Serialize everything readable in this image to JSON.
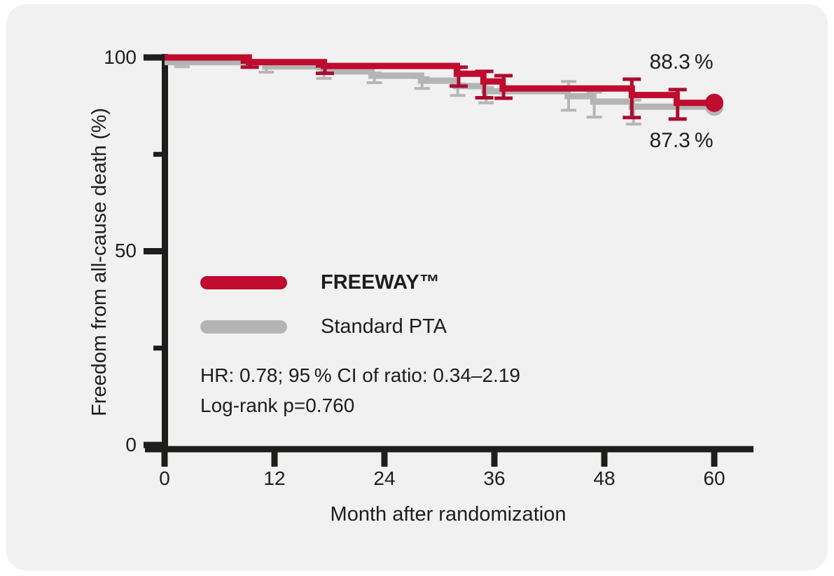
{
  "page": {
    "colors": {
      "page_bg": "#ffffff",
      "card_bg": "#f2f1f1",
      "axis": "#1d1d1b",
      "text": "#1d1d1b"
    }
  },
  "chart_data": {
    "type": "line",
    "subtype": "kaplan-meier-step",
    "title": "",
    "xlabel": "Month after randomization",
    "ylabel": "Freedom from all-cause death (%)",
    "xlim": [
      0,
      64
    ],
    "ylim": [
      0,
      100
    ],
    "x_ticks": [
      0,
      12,
      24,
      36,
      48,
      60
    ],
    "x_tick_labels": [
      "0",
      "12",
      "24",
      "36",
      "48",
      "60"
    ],
    "y_ticks_major": [
      0,
      50,
      100
    ],
    "y_tick_labels": [
      "100",
      "50",
      "0"
    ],
    "y_ticks_minor": [
      25,
      75
    ],
    "grid": false,
    "legend_position": "inside-left-middle",
    "series": [
      {
        "name": "FREEWAY™",
        "color": "#c00b2f",
        "bar_color": "#ab0c30",
        "end_label": "88.3 %",
        "final_value": 88.3,
        "steps": [
          [
            0,
            100
          ],
          [
            9.2,
            98.8
          ],
          [
            17.4,
            97.8
          ],
          [
            31.9,
            95.8
          ],
          [
            34.8,
            93.8
          ],
          [
            36.9,
            92.0
          ],
          [
            51,
            90.3
          ],
          [
            55.9,
            88.3
          ],
          [
            60,
            88.3
          ]
        ],
        "error_bars": [
          {
            "x": 9.3,
            "lo": 97.5,
            "hi": 98.8
          },
          {
            "x": 17.5,
            "lo": 95.9,
            "hi": 97.8
          },
          {
            "x": 32.1,
            "lo": 92.6,
            "hi": 97.5
          },
          {
            "x": 34.9,
            "lo": 89.6,
            "hi": 96.4
          },
          {
            "x": 37.0,
            "lo": 89.5,
            "hi": 95.3
          },
          {
            "x": 51.0,
            "lo": 84.5,
            "hi": 94.4
          },
          {
            "x": 56.0,
            "lo": 84.1,
            "hi": 91.7
          }
        ]
      },
      {
        "name": "Standard PTA",
        "color": "#b5b4b4",
        "bar_color": "#b7b6b6",
        "end_label": "87.3 %",
        "final_value": 87.3,
        "steps": [
          [
            0,
            98.8
          ],
          [
            11,
            97.7
          ],
          [
            17.3,
            96.4
          ],
          [
            22.6,
            95.3
          ],
          [
            28,
            94.0
          ],
          [
            31.8,
            92.6
          ],
          [
            34.9,
            91.3
          ],
          [
            44,
            90.0
          ],
          [
            46.8,
            88.6
          ],
          [
            51,
            87.3
          ],
          [
            60,
            87.3
          ]
        ],
        "error_bars": [
          {
            "x": 1.9,
            "lo": 97.6,
            "hi": 99.3
          },
          {
            "x": 11.1,
            "lo": 96.2,
            "hi": 98.3
          },
          {
            "x": 17.4,
            "lo": 94.6,
            "hi": 97.0
          },
          {
            "x": 22.9,
            "lo": 93.5,
            "hi": 96.0
          },
          {
            "x": 28.1,
            "lo": 92.0,
            "hi": 94.8
          },
          {
            "x": 32.0,
            "lo": 90.2,
            "hi": 93.2
          },
          {
            "x": 35.1,
            "lo": 88.3,
            "hi": 92.3
          },
          {
            "x": 44.1,
            "lo": 86.4,
            "hi": 93.8
          },
          {
            "x": 46.9,
            "lo": 84.6,
            "hi": 91.0
          },
          {
            "x": 51.2,
            "lo": 82.8,
            "hi": 89.0
          }
        ]
      }
    ],
    "stats": {
      "hr_line": "HR: 0.78; 95 % CI of ratio: 0.34–2.19",
      "logrank_line": "Log-rank p=0.760"
    }
  }
}
